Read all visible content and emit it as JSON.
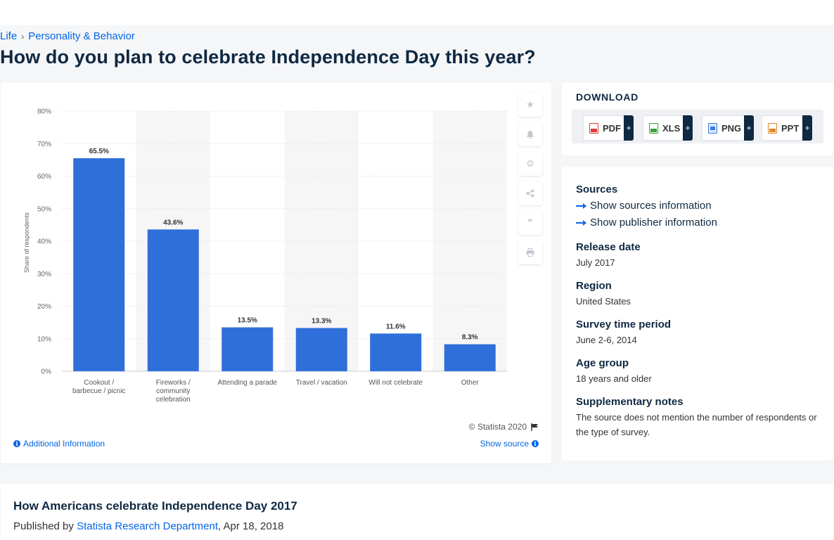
{
  "breadcrumb": {
    "items": [
      "Life",
      "Personality & Behavior"
    ]
  },
  "page_title": "How do you plan to celebrate Independence Day this year?",
  "chart_card": {
    "copyright": "© Statista 2020",
    "additional_info": "Additional Information",
    "show_source": "Show source"
  },
  "side_tools": [
    "star-icon",
    "bell-icon",
    "gear-icon",
    "share-icon",
    "quote-icon",
    "print-icon"
  ],
  "chart_data": {
    "type": "bar",
    "categories": [
      "Cookout / barbecue / picnic",
      "Fireworks / community celebration",
      "Attending a parade",
      "Travel / vacation",
      "Will not celebrate",
      "Other"
    ],
    "values": [
      65.5,
      43.6,
      13.5,
      13.3,
      11.6,
      8.3
    ],
    "data_labels": [
      "65.5%",
      "43.6%",
      "13.5%",
      "13.3%",
      "11.6%",
      "8.3%"
    ],
    "ylabel": "Share of respondents",
    "xlabel": "",
    "ylim": [
      0,
      80
    ],
    "yticks": [
      "0%",
      "10%",
      "20%",
      "30%",
      "40%",
      "50%",
      "60%",
      "70%",
      "80%"
    ],
    "grid": true,
    "bar_color": "#2f6fd9"
  },
  "download": {
    "title": "DOWNLOAD",
    "buttons": [
      {
        "label": "PDF",
        "icon": "pdf-file-icon",
        "color": "#e03a3a"
      },
      {
        "label": "XLS",
        "icon": "xls-file-icon",
        "color": "#3a9e3a"
      },
      {
        "label": "PNG",
        "icon": "png-file-icon",
        "color": "#3a7ae0"
      },
      {
        "label": "PPT",
        "icon": "ppt-file-icon",
        "color": "#e0862a"
      }
    ],
    "plus": "+"
  },
  "info": {
    "sources_heading": "Sources",
    "show_sources": "Show sources information",
    "show_publisher": "Show publisher information",
    "release_heading": "Release date",
    "release_value": "July 2017",
    "region_heading": "Region",
    "region_value": "United States",
    "survey_heading": "Survey time period",
    "survey_value": "June 2-6, 2014",
    "age_heading": "Age group",
    "age_value": "18 years and older",
    "notes_heading": "Supplementary notes",
    "notes_value": "The source does not mention the number of respondents or the type of survey."
  },
  "bottom": {
    "title": "How Americans celebrate Independence Day 2017",
    "published_prefix": "Published by",
    "publisher": "Statista Research Department",
    "date": ", Apr 18, 2018"
  }
}
